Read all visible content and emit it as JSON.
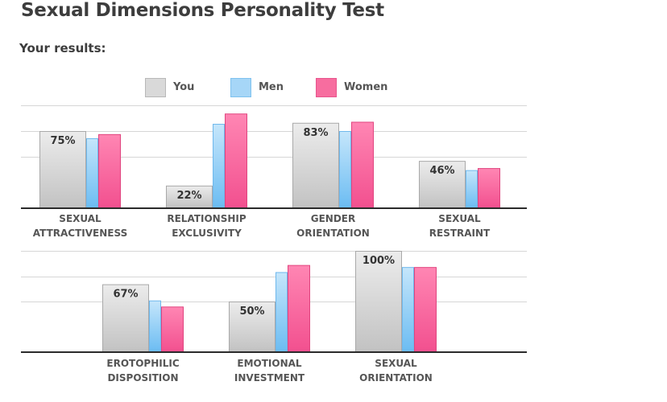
{
  "page": {
    "title": "Sexual Dimensions Personality Test",
    "subtitle": "Your results:"
  },
  "legend": [
    {
      "label": "You",
      "color": "#d9d9d9"
    },
    {
      "label": "Men",
      "color": "#a6d6f7"
    },
    {
      "label": "Women",
      "color": "#f76d9f"
    }
  ],
  "chart_data": [
    {
      "type": "bar",
      "categories": [
        [
          "SEXUAL",
          "ATTRACTIVENESS"
        ],
        [
          "RELATIONSHIP",
          "EXCLUSIVITY"
        ],
        [
          "GENDER",
          "ORIENTATION"
        ],
        [
          "SEXUAL",
          "RESTRAINT"
        ]
      ],
      "series": [
        {
          "name": "You",
          "values": [
            75,
            22,
            83,
            46
          ],
          "labels": [
            "75%",
            "22%",
            "83%",
            "46%"
          ]
        },
        {
          "name": "Men",
          "values": [
            68,
            82,
            75,
            37
          ]
        },
        {
          "name": "Women",
          "values": [
            72,
            92,
            84,
            39
          ]
        }
      ],
      "ylim": [
        0,
        100
      ],
      "grid": true
    },
    {
      "type": "bar",
      "categories": [
        [
          "EROTOPHILIC",
          "DISPOSITION"
        ],
        [
          "EMOTIONAL",
          "INVESTMENT"
        ],
        [
          "SEXUAL",
          "ORIENTATION"
        ]
      ],
      "series": [
        {
          "name": "You",
          "values": [
            67,
            50,
            100
          ],
          "labels": [
            "67%",
            "50%",
            "100%"
          ]
        },
        {
          "name": "Men",
          "values": [
            51,
            79,
            84
          ]
        },
        {
          "name": "Women",
          "values": [
            45,
            86,
            84
          ]
        }
      ],
      "ylim": [
        0,
        100
      ],
      "grid": true
    }
  ]
}
